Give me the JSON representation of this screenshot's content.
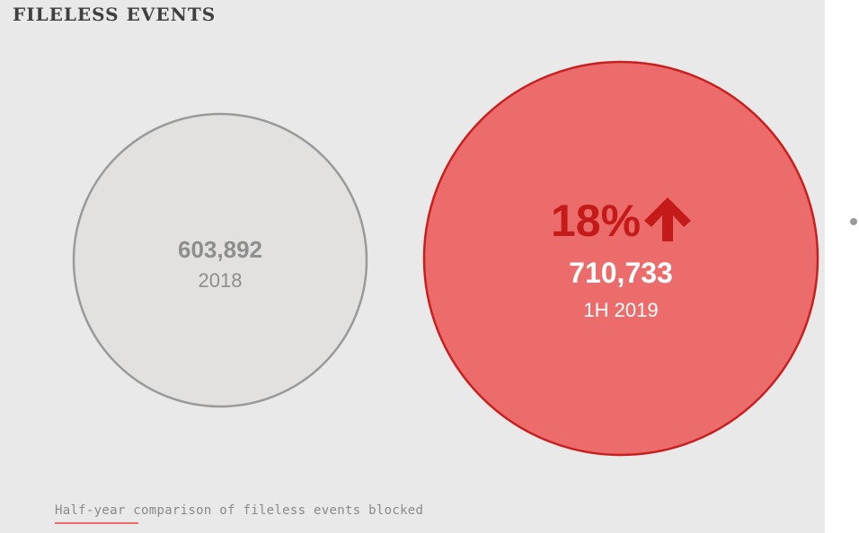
{
  "header": {
    "title": "FILELESS EVENTS"
  },
  "caption": "Half-year comparison of fileless events blocked",
  "chart_data": {
    "type": "bubble",
    "series": [
      {
        "label": "2018",
        "value": 603892,
        "display_value": "603,892"
      },
      {
        "label": "1H 2019",
        "value": 710733,
        "display_value": "710,733"
      }
    ],
    "change": {
      "text": "18%",
      "direction": "up",
      "icon": "arrow-up-icon"
    },
    "colors": {
      "baseline_fill": "#e2e1df",
      "baseline_stroke": "#9a9a9a",
      "baseline_text": "#8e8e8e",
      "highlight_fill": "#ec6b6b",
      "highlight_stroke": "#c81f1f",
      "highlight_text": "#ffffff",
      "change_text": "#c41a1a"
    }
  }
}
